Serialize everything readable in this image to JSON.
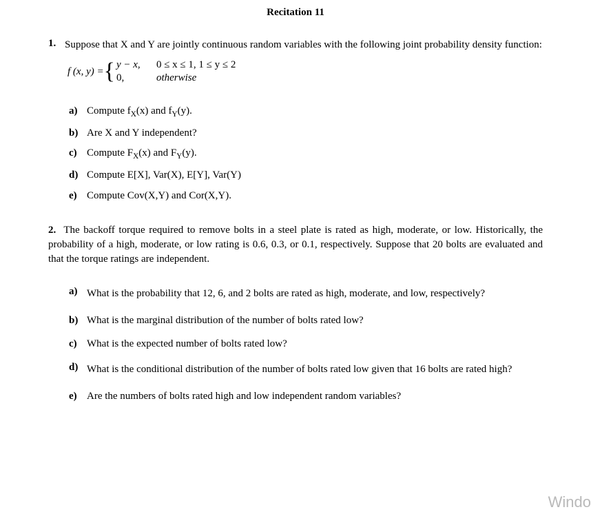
{
  "title": "Recitation 11",
  "problem1": {
    "num": "1.",
    "intro": "Suppose that X and Y are jointly continuous random variables with the following joint probability density function:",
    "formula_lhs": "f (x, y) = ",
    "case1_expr": "y − x,",
    "case1_cond": "0 ≤ x ≤ 1,  1 ≤ y ≤ 2",
    "case2_expr": "0,",
    "case2_cond": "otherwise",
    "items": {
      "a": {
        "label": "a)",
        "text_pre": "Compute f",
        "sub1": "X",
        "mid": "(x) and f",
        "sub2": "Y",
        "post": "(y)."
      },
      "b": {
        "label": "b)",
        "text": "Are X and Y independent?"
      },
      "c": {
        "label": "c)",
        "text_pre": "Compute F",
        "sub1": "X",
        "mid": "(x) and F",
        "sub2": "Y",
        "post": "(y)."
      },
      "d": {
        "label": "d)",
        "text": "Compute E[X], Var(X), E[Y], Var(Y)"
      },
      "e": {
        "label": "e)",
        "text": "Compute Cov(X,Y) and Cor(X,Y)."
      }
    }
  },
  "problem2": {
    "num": "2.",
    "intro": "The backoff torque required to remove bolts in a steel plate is rated as high, moderate, or low. Historically, the probability of a high, moderate, or low rating is 0.6, 0.3, or 0.1, respectively. Suppose that 20 bolts are evaluated and that the torque ratings are independent.",
    "items": {
      "a": {
        "label": "a)",
        "text": "What is the probability that 12, 6, and 2 bolts are rated as high, moderate, and low, respectively?"
      },
      "b": {
        "label": "b)",
        "text": "What is the marginal distribution of the number of bolts rated low?"
      },
      "c": {
        "label": "c)",
        "text": "What is the expected number of bolts rated low?"
      },
      "d": {
        "label": "d)",
        "text": "What is the conditional distribution of the number of bolts rated low given that 16 bolts are rated high?"
      },
      "e": {
        "label": "e)",
        "text": "Are the numbers of bolts rated high and low independent random variables?"
      }
    }
  },
  "watermark": "Windo"
}
